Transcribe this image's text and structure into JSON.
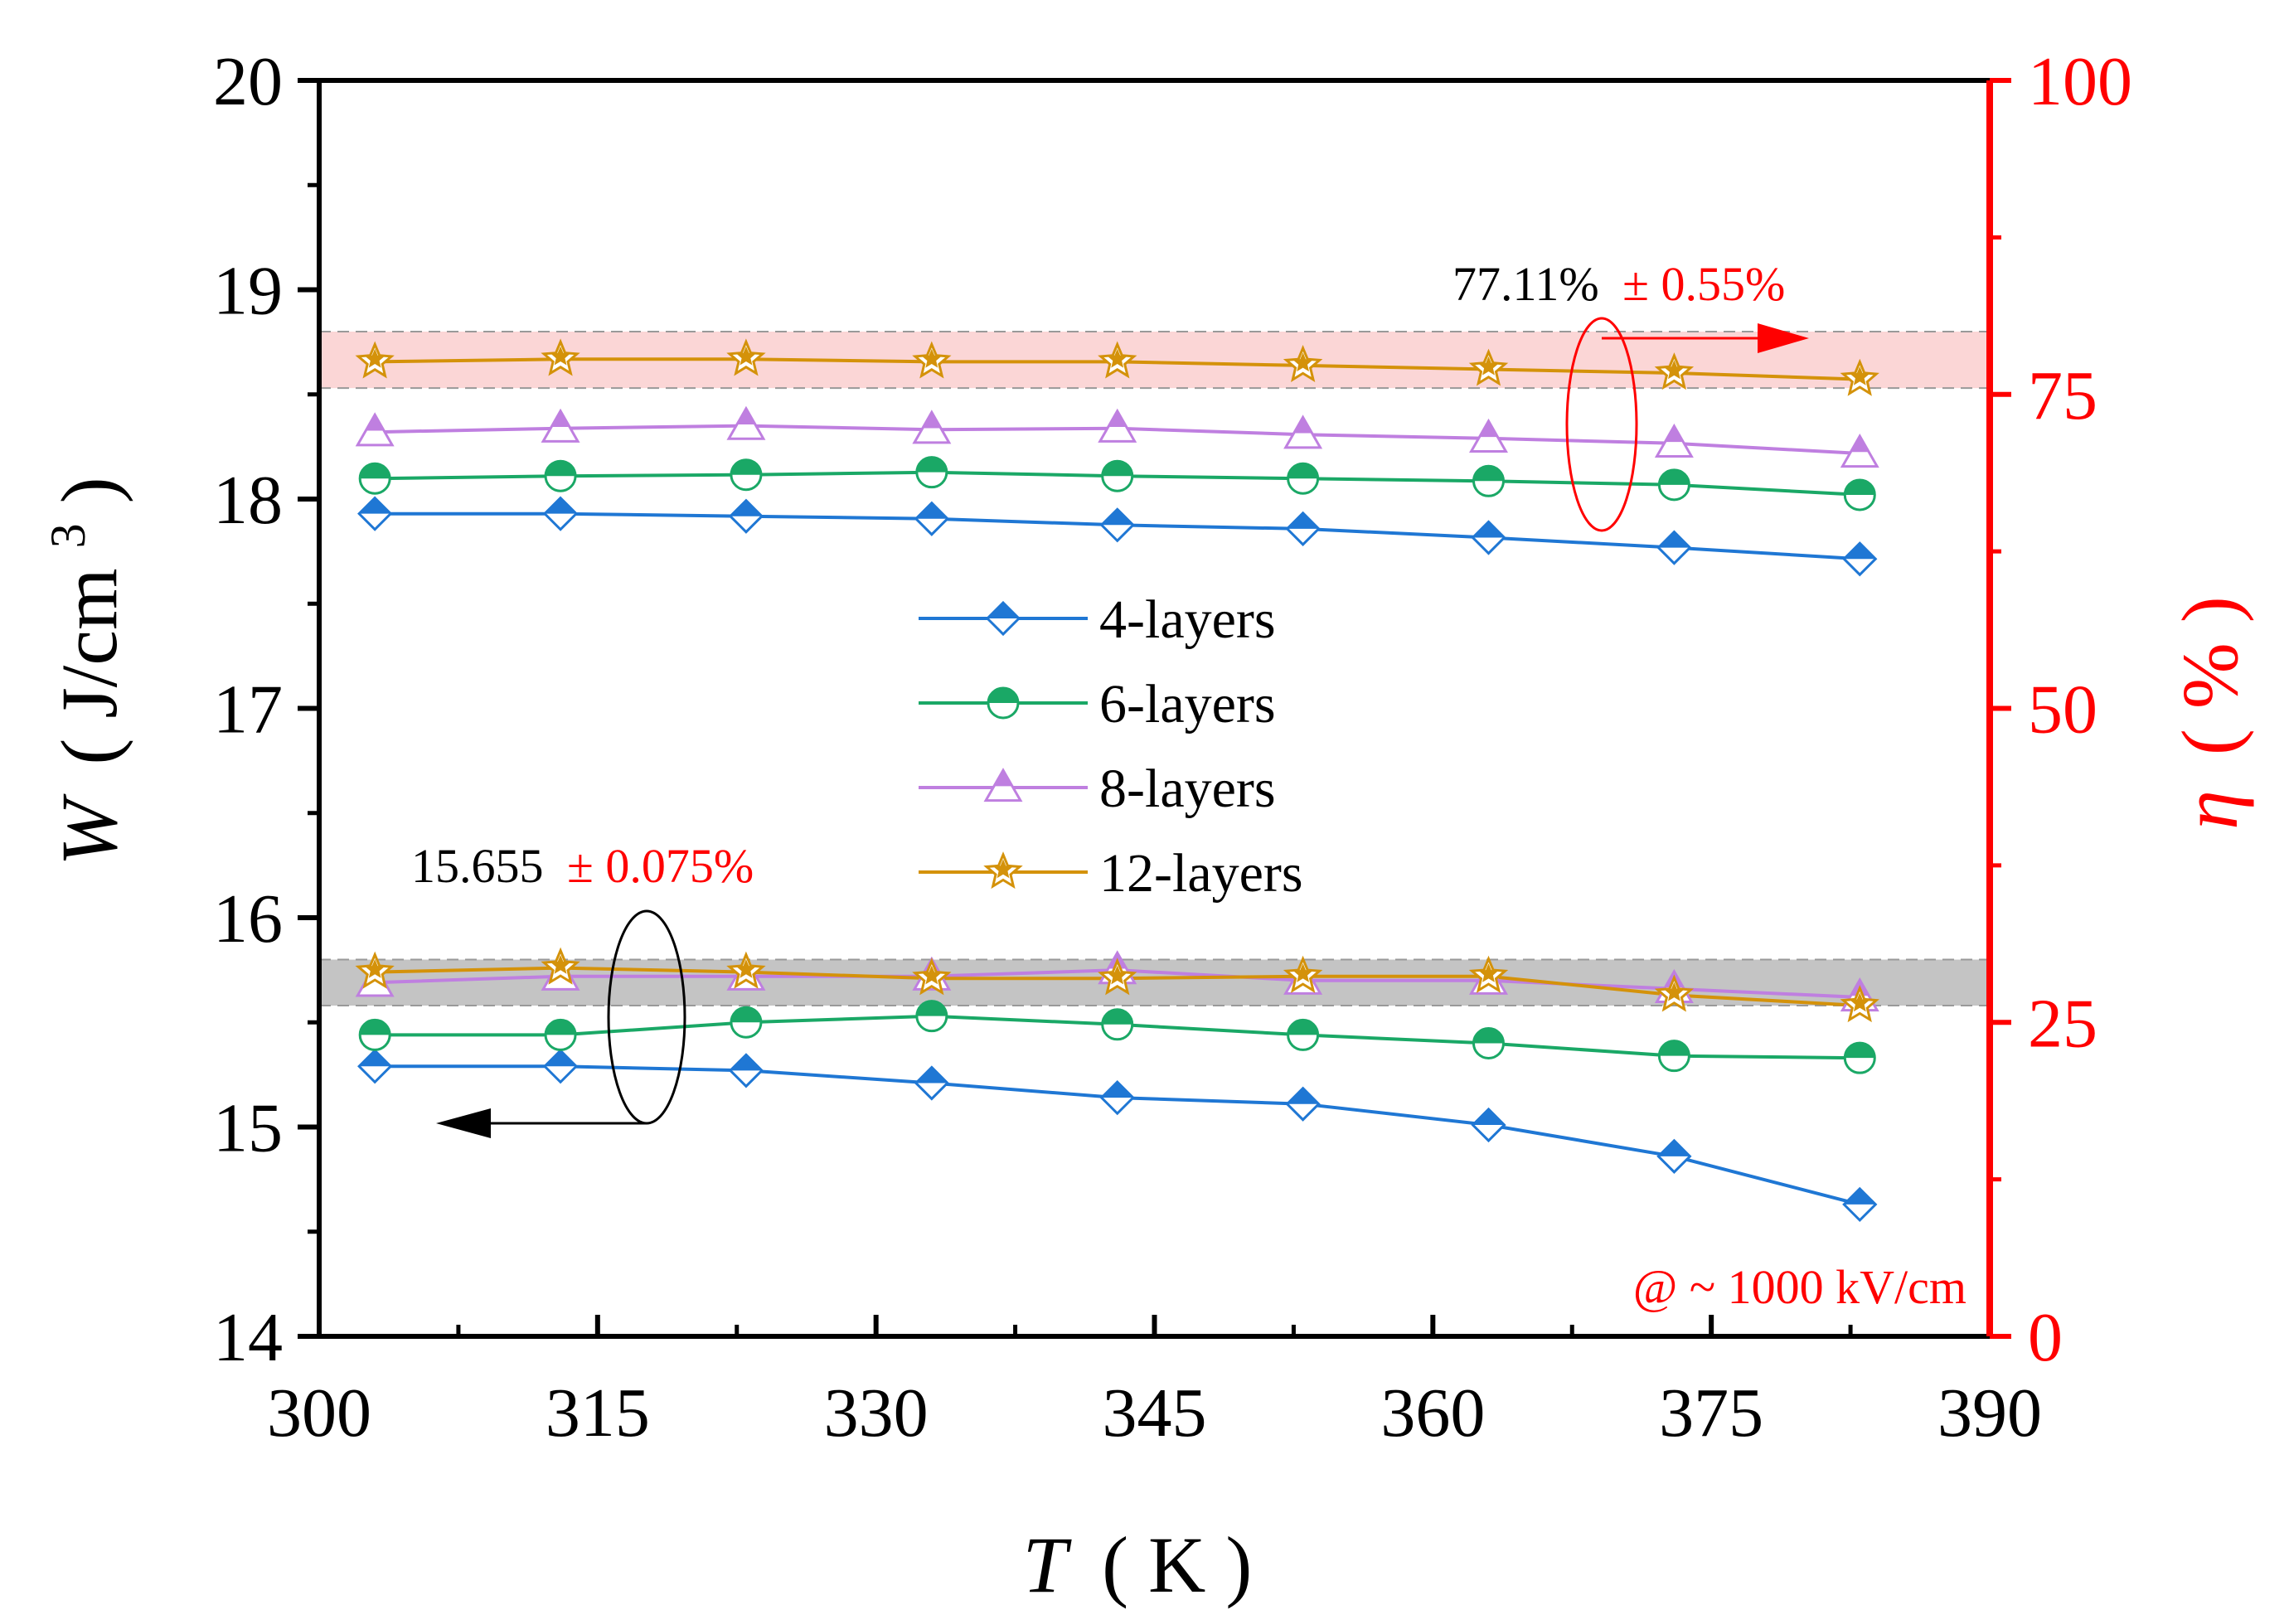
{
  "chart_data": {
    "type": "line",
    "x": [
      303,
      313,
      323,
      333,
      343,
      353,
      363,
      373,
      383
    ],
    "xlabel": {
      "italic": "T",
      "rest": "( K )"
    },
    "xlim": [
      300,
      390
    ],
    "xticks": [
      300,
      315,
      330,
      345,
      360,
      375,
      390
    ],
    "ylabel_left": {
      "italic": "W",
      "rest": "( J/cm",
      "sup": "3",
      "close": " )"
    },
    "ylim_left": [
      14,
      20
    ],
    "yticks_left": [
      14,
      15,
      16,
      17,
      18,
      19,
      20
    ],
    "ylabel_right": {
      "italic": "η",
      "rest": "( % )"
    },
    "ylim_right": [
      0,
      100
    ],
    "yticks_right": [
      0,
      25,
      50,
      75,
      100
    ],
    "series": [
      {
        "name": "4-layers",
        "marker": "diamond",
        "color": "#1f77d4",
        "axis": "left",
        "group": "W",
        "values": [
          15.29,
          15.29,
          15.27,
          15.21,
          15.14,
          15.11,
          15.01,
          14.86,
          14.63
        ]
      },
      {
        "name": "6-layers",
        "marker": "circle",
        "color": "#1aa866",
        "axis": "left",
        "group": "W",
        "values": [
          15.44,
          15.44,
          15.5,
          15.53,
          15.49,
          15.44,
          15.4,
          15.34,
          15.33
        ]
      },
      {
        "name": "8-layers",
        "marker": "triangle",
        "color": "#bf7fe0",
        "axis": "left",
        "group": "W",
        "values": [
          15.69,
          15.72,
          15.72,
          15.72,
          15.75,
          15.7,
          15.7,
          15.66,
          15.62
        ]
      },
      {
        "name": "12-layers",
        "marker": "star",
        "color": "#d4920a",
        "axis": "left",
        "group": "W",
        "values": [
          15.74,
          15.76,
          15.74,
          15.71,
          15.71,
          15.72,
          15.72,
          15.63,
          15.58
        ]
      },
      {
        "name": "4-layers",
        "marker": "diamond",
        "color": "#1f77d4",
        "axis": "right",
        "group": "eta",
        "values": [
          65.5,
          65.5,
          65.3,
          65.1,
          64.6,
          64.3,
          63.6,
          62.8,
          61.9
        ]
      },
      {
        "name": "6-layers",
        "marker": "circle",
        "color": "#1aa866",
        "axis": "right",
        "group": "eta",
        "values": [
          68.3,
          68.5,
          68.6,
          68.8,
          68.5,
          68.3,
          68.1,
          67.8,
          67.0
        ]
      },
      {
        "name": "8-layers",
        "marker": "triangle",
        "color": "#bf7fe0",
        "axis": "right",
        "group": "eta",
        "values": [
          72.0,
          72.3,
          72.5,
          72.2,
          72.3,
          71.8,
          71.5,
          71.1,
          70.3
        ]
      },
      {
        "name": "12-layers",
        "marker": "star",
        "color": "#d4920a",
        "axis": "right",
        "group": "eta",
        "values": [
          77.6,
          77.8,
          77.8,
          77.6,
          77.6,
          77.3,
          77.0,
          76.7,
          76.2
        ]
      }
    ],
    "bands": [
      {
        "axis": "left",
        "from": 15.58,
        "to": 15.8,
        "color": "#c4c4c4"
      },
      {
        "axis": "right",
        "from": 75.5,
        "to": 80.0,
        "color": "#fbd6d6"
      }
    ],
    "legend": {
      "position": "center",
      "entries": [
        "4-layers",
        "6-layers",
        "8-layers",
        "12-layers"
      ]
    },
    "annotations": {
      "eta_value": "77.11%",
      "eta_error": "± 0.55%",
      "w_value": "15.655",
      "w_error": "± 0.075%",
      "field": "@ ~ 1000 kV/cm"
    },
    "colors": {
      "right_axis": "#ff0000",
      "left_axis": "#000000"
    }
  }
}
